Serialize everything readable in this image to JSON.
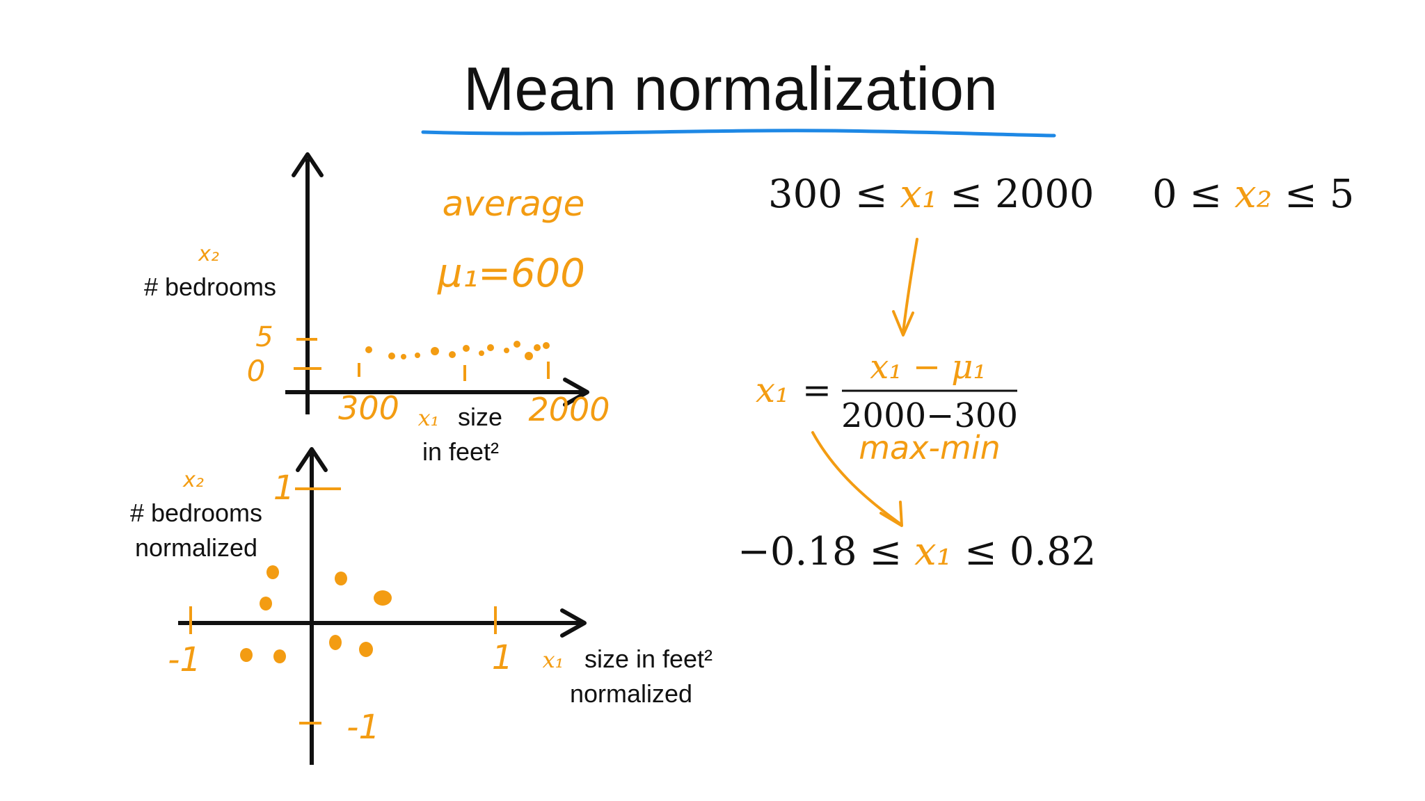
{
  "title": "Mean normalization",
  "colors": {
    "ink": "#111111",
    "accent": "#f39c12",
    "underline": "#1e88e5"
  },
  "top_plot": {
    "y_var": "x₂",
    "y_label": "# bedrooms",
    "y_tick_high": "5",
    "y_tick_low": "0",
    "x_tick_low": "300",
    "x_tick_high": "2000",
    "x_var": "x₁",
    "x_label_line1": "size",
    "x_label_line2": "in feet²",
    "note_line1": "average",
    "note_line2": "μ₁=600"
  },
  "bottom_plot": {
    "y_var": "x₂",
    "y_label_line1": "# bedrooms",
    "y_label_line2": "normalized",
    "y_tick_high": "1",
    "y_tick_low": "-1",
    "x_tick_low": "-1",
    "x_tick_high": "1",
    "x_var": "x₁",
    "x_label_line1": "size in feet²",
    "x_label_line2": "normalized"
  },
  "ranges": {
    "r1": {
      "left": "300 ≤",
      "var": "x₁",
      "right": "≤ 2000"
    },
    "r2": {
      "left": "0 ≤",
      "var": "x₂",
      "right": "≤ 5"
    }
  },
  "formula": {
    "lhs": "x₁",
    "equals": "=",
    "numerator": "x₁ − μ₁",
    "denominator": "2000−300",
    "annotation": "max-min"
  },
  "result": {
    "left": "−0.18 ≤",
    "var": "x₁",
    "right": "≤ 0.82"
  }
}
